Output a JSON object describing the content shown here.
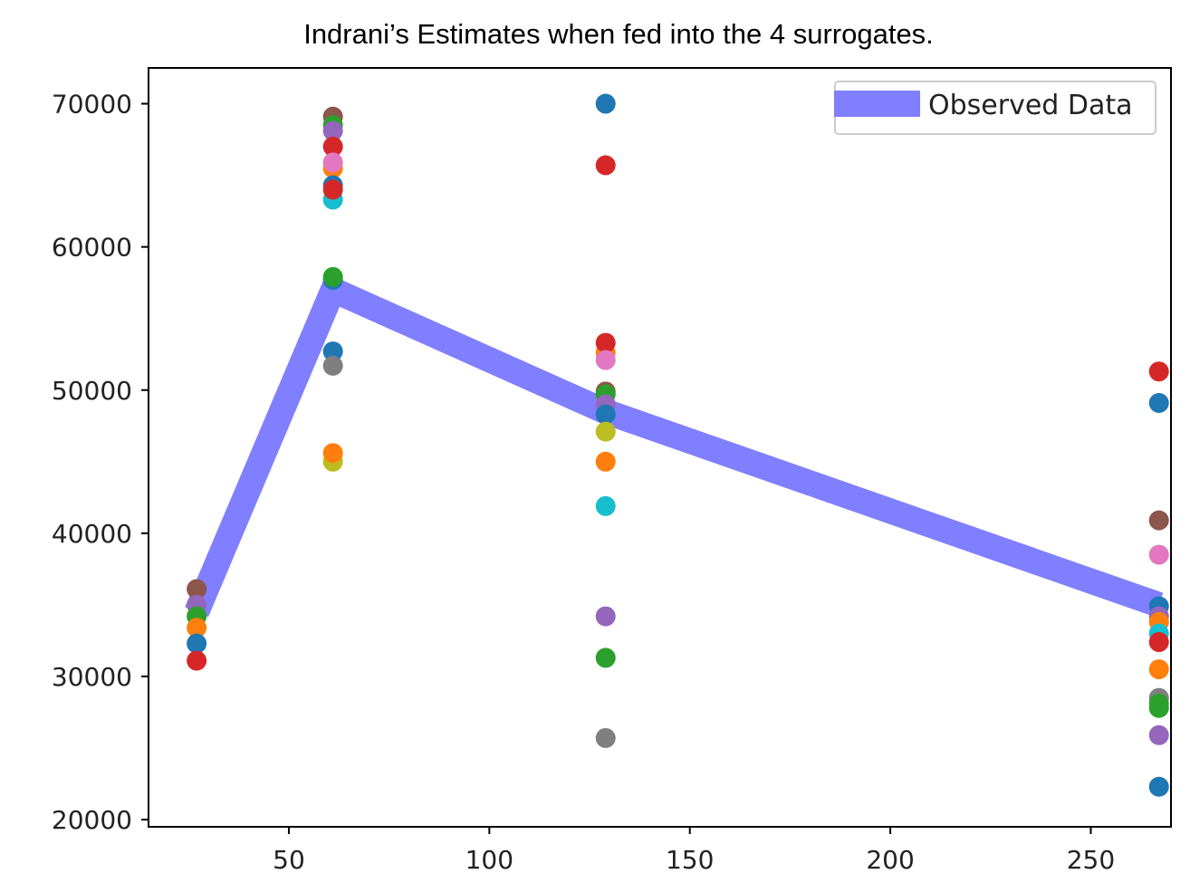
{
  "chart_data": {
    "type": "scatter",
    "title": "Indrani’s Estimates when fed into the 4 surrogates.",
    "xlabel": "",
    "ylabel": "",
    "xlim": [
      15,
      270
    ],
    "ylim": [
      19500,
      72500
    ],
    "xticks": [
      50,
      100,
      150,
      200,
      250
    ],
    "yticks": [
      20000,
      30000,
      40000,
      50000,
      60000,
      70000
    ],
    "xtick_labels": [
      "50",
      "100",
      "150",
      "200",
      "250"
    ],
    "ytick_labels": [
      "20000",
      "30000",
      "40000",
      "50000",
      "60000",
      "70000"
    ],
    "grid": false,
    "legend_position": "top-right",
    "legend": [
      {
        "label": "Observed Data",
        "color": "#7f7fff"
      }
    ],
    "line_series": {
      "name": "Observed Data",
      "color": "#7f7fff",
      "x": [
        27,
        61,
        129,
        267
      ],
      "y": [
        34500,
        57000,
        48500,
        35000
      ]
    },
    "scatter_points": [
      {
        "x": 27,
        "y": 36100,
        "color": "#8c564b"
      },
      {
        "x": 27,
        "y": 35000,
        "color": "#9467bd"
      },
      {
        "x": 27,
        "y": 34200,
        "color": "#2ca02c"
      },
      {
        "x": 27,
        "y": 33400,
        "color": "#ff7f0e"
      },
      {
        "x": 27,
        "y": 32300,
        "color": "#1f77b4"
      },
      {
        "x": 27,
        "y": 31100,
        "color": "#d62728"
      },
      {
        "x": 61,
        "y": 69100,
        "color": "#8c564b"
      },
      {
        "x": 61,
        "y": 68500,
        "color": "#2ca02c"
      },
      {
        "x": 61,
        "y": 68100,
        "color": "#9467bd"
      },
      {
        "x": 61,
        "y": 67000,
        "color": "#d62728"
      },
      {
        "x": 61,
        "y": 65500,
        "color": "#ff7f0e"
      },
      {
        "x": 61,
        "y": 65900,
        "color": "#e377c2"
      },
      {
        "x": 61,
        "y": 64300,
        "color": "#1f77b4"
      },
      {
        "x": 61,
        "y": 63300,
        "color": "#17becf"
      },
      {
        "x": 61,
        "y": 64000,
        "color": "#d62728"
      },
      {
        "x": 61,
        "y": 57700,
        "color": "#1f77b4"
      },
      {
        "x": 61,
        "y": 57900,
        "color": "#2ca02c"
      },
      {
        "x": 61,
        "y": 52700,
        "color": "#1f77b4"
      },
      {
        "x": 61,
        "y": 51700,
        "color": "#7f7f7f"
      },
      {
        "x": 61,
        "y": 45000,
        "color": "#bcbd22"
      },
      {
        "x": 61,
        "y": 45600,
        "color": "#ff7f0e"
      },
      {
        "x": 129,
        "y": 70000,
        "color": "#1f77b4"
      },
      {
        "x": 129,
        "y": 65700,
        "color": "#d62728"
      },
      {
        "x": 129,
        "y": 52600,
        "color": "#ff7f0e"
      },
      {
        "x": 129,
        "y": 53300,
        "color": "#d62728"
      },
      {
        "x": 129,
        "y": 52100,
        "color": "#e377c2"
      },
      {
        "x": 129,
        "y": 49900,
        "color": "#8c564b"
      },
      {
        "x": 129,
        "y": 49700,
        "color": "#2ca02c"
      },
      {
        "x": 129,
        "y": 49000,
        "color": "#9467bd"
      },
      {
        "x": 129,
        "y": 48300,
        "color": "#1f77b4"
      },
      {
        "x": 129,
        "y": 47100,
        "color": "#bcbd22"
      },
      {
        "x": 129,
        "y": 45000,
        "color": "#ff7f0e"
      },
      {
        "x": 129,
        "y": 41900,
        "color": "#17becf"
      },
      {
        "x": 129,
        "y": 34200,
        "color": "#9467bd"
      },
      {
        "x": 129,
        "y": 31300,
        "color": "#2ca02c"
      },
      {
        "x": 129,
        "y": 25700,
        "color": "#7f7f7f"
      },
      {
        "x": 267,
        "y": 51300,
        "color": "#d62728"
      },
      {
        "x": 267,
        "y": 49100,
        "color": "#1f77b4"
      },
      {
        "x": 267,
        "y": 40900,
        "color": "#8c564b"
      },
      {
        "x": 267,
        "y": 38500,
        "color": "#e377c2"
      },
      {
        "x": 267,
        "y": 34900,
        "color": "#1f77b4"
      },
      {
        "x": 267,
        "y": 34200,
        "color": "#9467bd"
      },
      {
        "x": 267,
        "y": 33800,
        "color": "#ff7f0e"
      },
      {
        "x": 267,
        "y": 33000,
        "color": "#17becf"
      },
      {
        "x": 267,
        "y": 32400,
        "color": "#d62728"
      },
      {
        "x": 267,
        "y": 30500,
        "color": "#ff7f0e"
      },
      {
        "x": 267,
        "y": 28500,
        "color": "#7f7f7f"
      },
      {
        "x": 267,
        "y": 28100,
        "color": "#2ca02c"
      },
      {
        "x": 267,
        "y": 27800,
        "color": "#2ca02c"
      },
      {
        "x": 267,
        "y": 25900,
        "color": "#9467bd"
      },
      {
        "x": 267,
        "y": 22300,
        "color": "#1f77b4"
      }
    ]
  }
}
